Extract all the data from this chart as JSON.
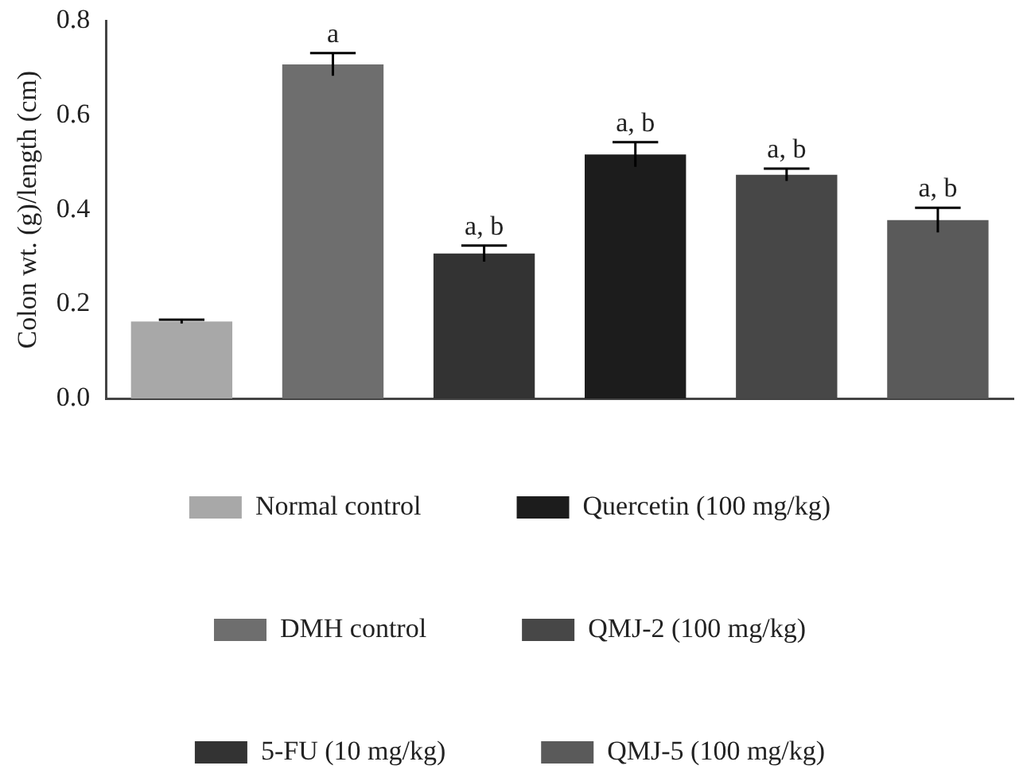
{
  "chart_data": {
    "type": "bar",
    "ylabel": "Colon wt. (g)/length (cm)",
    "categories": [
      null
    ],
    "series": [
      {
        "name": "Normal control",
        "color": "#a8a8a8",
        "values": [
          0.163
        ],
        "errors": [
          0.004
        ]
      },
      {
        "name": "DMH control",
        "color": "#6e6e6e",
        "values": [
          0.708
        ],
        "errors": [
          0.024
        ]
      },
      {
        "name": "5-FU (10 mg/kg)",
        "color": "#333333",
        "values": [
          0.307
        ],
        "errors": [
          0.017
        ]
      },
      {
        "name": "Quercetin (100 mg/kg)",
        "color": "#1c1c1c",
        "values": [
          0.517
        ],
        "errors": [
          0.026
        ]
      },
      {
        "name": "QMJ-2 (100 mg/kg)",
        "color": "#474747",
        "values": [
          0.474
        ],
        "errors": [
          0.013
        ]
      },
      {
        "name": "QMJ-5 (100 mg/kg)",
        "color": "#5a5a5a",
        "values": [
          0.378
        ],
        "errors": [
          0.026
        ]
      }
    ],
    "ylim": [
      0,
      0.8
    ],
    "yticks": [
      {
        "value": 0,
        "label": "0.0"
      },
      0.2,
      0.4,
      0.6,
      0.8
    ],
    "tick_labels": "y",
    "grid": false,
    "legend": "bottom",
    "annotations": [
      "a",
      "a, b",
      "a, b",
      "a, b",
      "a, b"
    ]
  }
}
